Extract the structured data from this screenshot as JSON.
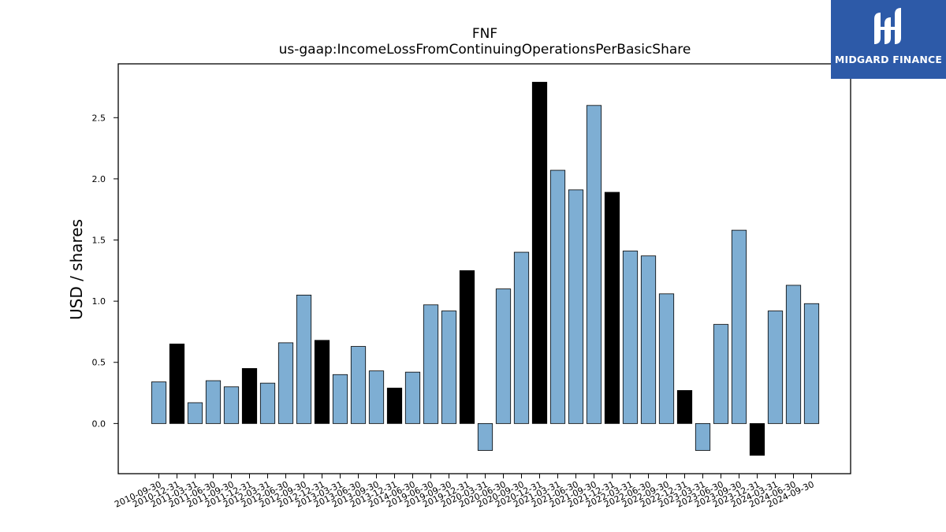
{
  "logo": {
    "brand_text": "MIDGARD FINANCE",
    "background_color": "#2d5aa8",
    "icon": "midgard-m-logo-icon"
  },
  "chart_data": {
    "type": "bar",
    "title": "FNF",
    "subtitle": "us-gaap:IncomeLossFromContinuingOperationsPerBasicShare",
    "xlabel": "",
    "ylabel": "USD / shares",
    "ylim": [
      -0.41,
      2.94
    ],
    "yticks": [
      "0.0",
      "0.5",
      "1.0",
      "1.5",
      "2.0",
      "2.5"
    ],
    "grid": false,
    "colors": {
      "quarter": "#7eaed3",
      "year_end": "#000000",
      "edge": "#000000"
    },
    "categories": [
      "2010-09-30",
      "2010-12-31",
      "2011-03-31",
      "2011-06-30",
      "2011-09-30",
      "2011-12-31",
      "2012-03-31",
      "2012-06-30",
      "2012-09-30",
      "2012-12-31",
      "2013-03-31",
      "2013-06-30",
      "2013-09-30",
      "2013-12-31",
      "2014-06-30",
      "2019-06-30",
      "2019-09-30",
      "2019-12-31",
      "2020-03-31",
      "2020-06-30",
      "2020-09-30",
      "2020-12-31",
      "2021-03-31",
      "2021-06-30",
      "2021-09-30",
      "2021-12-31",
      "2022-03-31",
      "2022-06-30",
      "2022-09-30",
      "2022-12-31",
      "2023-03-31",
      "2023-06-30",
      "2023-09-30",
      "2023-12-31",
      "2024-03-31",
      "2024-06-30",
      "2024-09-30"
    ],
    "values": [
      0.34,
      0.65,
      0.17,
      0.35,
      0.3,
      0.45,
      0.33,
      0.66,
      1.05,
      0.68,
      0.4,
      0.63,
      0.43,
      0.29,
      0.42,
      0.97,
      0.92,
      1.25,
      -0.22,
      1.1,
      1.4,
      2.79,
      2.07,
      1.91,
      2.6,
      1.89,
      1.41,
      1.37,
      1.06,
      0.27,
      -0.22,
      0.81,
      1.58,
      -0.26,
      0.92,
      1.13,
      0.98
    ]
  }
}
